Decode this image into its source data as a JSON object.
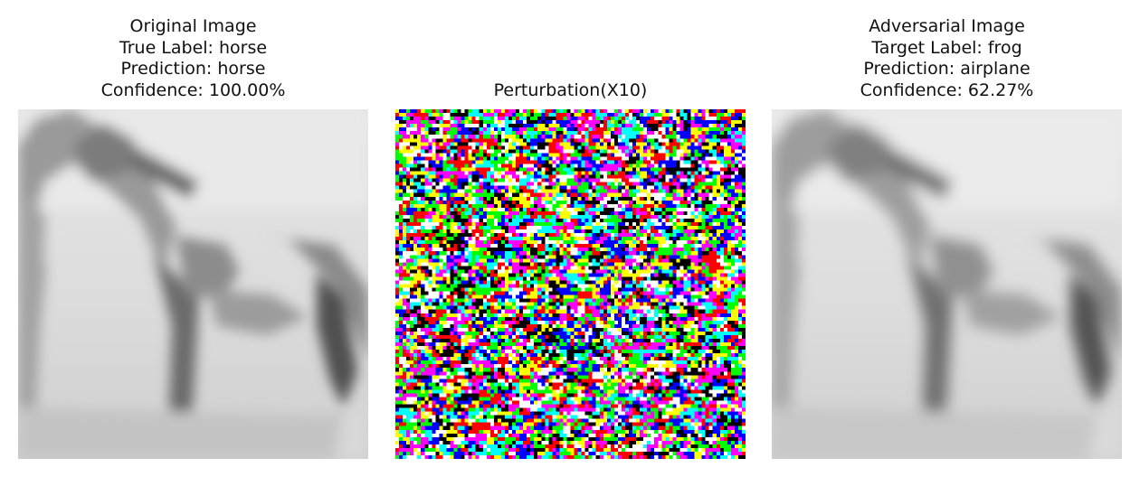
{
  "panels": [
    {
      "lines": [
        "Original Image",
        "True Label: horse",
        "Prediction: horse",
        "Confidence: 100.00%"
      ]
    },
    {
      "lines": [
        "Perturbation(X10)"
      ]
    },
    {
      "lines": [
        "Adversarial Image",
        "Target Label: frog",
        "Prediction: airplane",
        "Confidence: 62.27%"
      ]
    }
  ],
  "colors": {
    "background": "#ffffff",
    "noise_palette": [
      "#ffffff",
      "#000000",
      "#ff0000",
      "#00ff00",
      "#0000ff",
      "#00ffff",
      "#ff00ff",
      "#ffff00"
    ]
  }
}
